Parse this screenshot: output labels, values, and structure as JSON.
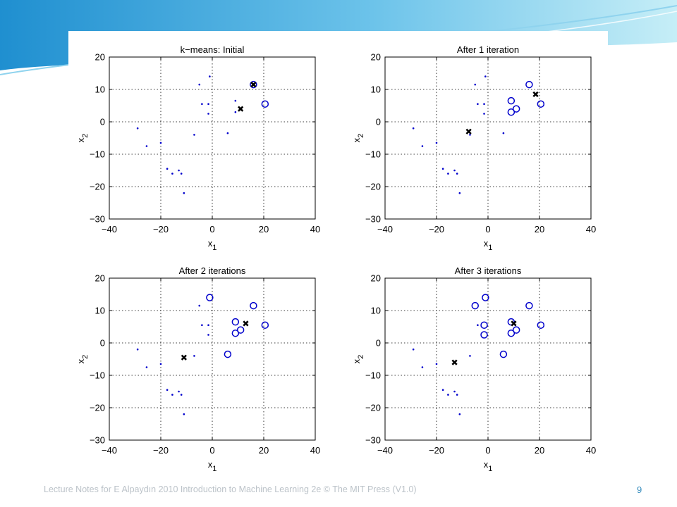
{
  "slide": {
    "footer": "Lecture Notes for E Alpaydın 2010 Introduction to Machine Learning 2e © The MIT Press (V1.0)",
    "page_number": "9",
    "colors": {
      "header_gradient_start": "#1f8fd0",
      "header_gradient_end": "#bfeaf5",
      "footer_text": "#bcc3c9",
      "page_number": "#3a8fbf"
    }
  },
  "chart_data": [
    {
      "type": "scatter",
      "title": "k−means: Initial",
      "xlabel": "x",
      "xlabel_sub": "1",
      "ylabel": "x",
      "ylabel_sub": "2",
      "xlim": [
        -40,
        40
      ],
      "ylim": [
        -30,
        20
      ],
      "xticks": [
        -40,
        -20,
        0,
        20,
        40
      ],
      "yticks": [
        -30,
        -20,
        -10,
        0,
        10,
        20
      ],
      "grid": true,
      "series": [
        {
          "marker": "dot",
          "color": "#0000cc",
          "points": [
            [
              -29,
              -2
            ],
            [
              -25.5,
              -7.5
            ],
            [
              -20,
              -6.5
            ],
            [
              -17.5,
              -14.5
            ],
            [
              -15.5,
              -16
            ],
            [
              -13,
              -15
            ],
            [
              -12,
              -16
            ],
            [
              -11,
              -22
            ],
            [
              -7,
              -4
            ],
            [
              -5,
              11.5
            ],
            [
              -4,
              5.5
            ],
            [
              -1.5,
              5.5
            ],
            [
              -1.5,
              2.5
            ],
            [
              -1,
              14
            ],
            [
              6,
              -3.5
            ],
            [
              9,
              3
            ],
            [
              9,
              6.5
            ],
            [
              11,
              4
            ]
          ]
        },
        {
          "marker": "circle",
          "color": "#0000cc",
          "points": [
            [
              16,
              11.5
            ],
            [
              20.5,
              5.5
            ]
          ]
        },
        {
          "marker": "cross",
          "color": "#000000",
          "points": [
            [
              16,
              11.5
            ],
            [
              11,
              4
            ]
          ]
        }
      ]
    },
    {
      "type": "scatter",
      "title": "After 1 iteration",
      "xlabel": "x",
      "xlabel_sub": "1",
      "ylabel": "x",
      "ylabel_sub": "2",
      "xlim": [
        -40,
        40
      ],
      "ylim": [
        -30,
        20
      ],
      "xticks": [
        -40,
        -20,
        0,
        20,
        40
      ],
      "yticks": [
        -30,
        -20,
        -10,
        0,
        10,
        20
      ],
      "grid": true,
      "series": [
        {
          "marker": "dot",
          "color": "#0000cc",
          "points": [
            [
              -29,
              -2
            ],
            [
              -25.5,
              -7.5
            ],
            [
              -20,
              -6.5
            ],
            [
              -17.5,
              -14.5
            ],
            [
              -15.5,
              -16
            ],
            [
              -13,
              -15
            ],
            [
              -12,
              -16
            ],
            [
              -11,
              -22
            ],
            [
              -7,
              -4
            ],
            [
              -5,
              11.5
            ],
            [
              -4,
              5.5
            ],
            [
              -1.5,
              5.5
            ],
            [
              -1.5,
              2.5
            ],
            [
              -1,
              14
            ],
            [
              6,
              -3.5
            ]
          ]
        },
        {
          "marker": "circle",
          "color": "#0000cc",
          "points": [
            [
              16,
              11.5
            ],
            [
              9,
              6.5
            ],
            [
              11,
              4
            ],
            [
              9,
              3
            ],
            [
              20.5,
              5.5
            ]
          ]
        },
        {
          "marker": "cross",
          "color": "#000000",
          "points": [
            [
              -7.5,
              -3
            ],
            [
              18.5,
              8.5
            ]
          ]
        }
      ]
    },
    {
      "type": "scatter",
      "title": "After 2 iterations",
      "xlabel": "x",
      "xlabel_sub": "1",
      "ylabel": "x",
      "ylabel_sub": "2",
      "xlim": [
        -40,
        40
      ],
      "ylim": [
        -30,
        20
      ],
      "xticks": [
        -40,
        -20,
        0,
        20,
        40
      ],
      "yticks": [
        -30,
        -20,
        -10,
        0,
        10,
        20
      ],
      "grid": true,
      "series": [
        {
          "marker": "dot",
          "color": "#0000cc",
          "points": [
            [
              -29,
              -2
            ],
            [
              -25.5,
              -7.5
            ],
            [
              -20,
              -6.5
            ],
            [
              -17.5,
              -14.5
            ],
            [
              -15.5,
              -16
            ],
            [
              -13,
              -15
            ],
            [
              -12,
              -16
            ],
            [
              -11,
              -22
            ],
            [
              -7,
              -4
            ],
            [
              -5,
              11.5
            ],
            [
              -4,
              5.5
            ],
            [
              -1.5,
              5.5
            ],
            [
              -1.5,
              2.5
            ]
          ]
        },
        {
          "marker": "circle",
          "color": "#0000cc",
          "points": [
            [
              -1,
              14
            ],
            [
              16,
              11.5
            ],
            [
              9,
              6.5
            ],
            [
              11,
              4
            ],
            [
              9,
              3
            ],
            [
              20.5,
              5.5
            ],
            [
              6,
              -3.5
            ]
          ]
        },
        {
          "marker": "cross",
          "color": "#000000",
          "points": [
            [
              -11,
              -4.5
            ],
            [
              13,
              6
            ]
          ]
        }
      ]
    },
    {
      "type": "scatter",
      "title": "After 3 iterations",
      "xlabel": "x",
      "xlabel_sub": "1",
      "ylabel": "x",
      "ylabel_sub": "2",
      "xlim": [
        -40,
        40
      ],
      "ylim": [
        -30,
        20
      ],
      "xticks": [
        -40,
        -20,
        0,
        20,
        40
      ],
      "yticks": [
        -30,
        -20,
        -10,
        0,
        10,
        20
      ],
      "grid": true,
      "series": [
        {
          "marker": "dot",
          "color": "#0000cc",
          "points": [
            [
              -29,
              -2
            ],
            [
              -25.5,
              -7.5
            ],
            [
              -20,
              -6.5
            ],
            [
              -17.5,
              -14.5
            ],
            [
              -15.5,
              -16
            ],
            [
              -13,
              -15
            ],
            [
              -12,
              -16
            ],
            [
              -11,
              -22
            ],
            [
              -7,
              -4
            ],
            [
              -4,
              5.5
            ]
          ]
        },
        {
          "marker": "circle",
          "color": "#0000cc",
          "points": [
            [
              -5,
              11.5
            ],
            [
              -1,
              14
            ],
            [
              -1.5,
              5.5
            ],
            [
              -1.5,
              2.5
            ],
            [
              16,
              11.5
            ],
            [
              9,
              6.5
            ],
            [
              11,
              4
            ],
            [
              9,
              3
            ],
            [
              20.5,
              5.5
            ],
            [
              6,
              -3.5
            ]
          ]
        },
        {
          "marker": "cross",
          "color": "#000000",
          "points": [
            [
              -13,
              -6
            ],
            [
              10,
              6
            ]
          ]
        }
      ]
    }
  ]
}
